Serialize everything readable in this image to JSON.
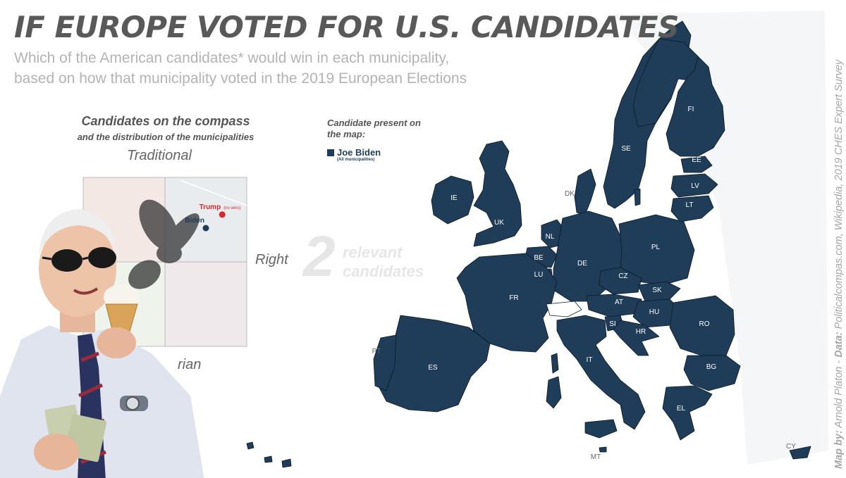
{
  "header": {
    "title": "IF EUROPE VOTED FOR U.S. CANDIDATES",
    "subtitle_line1": "Which of the American candidates* would win in each municipality,",
    "subtitle_line2": "based on how that municipality voted in the 2019 European Elections"
  },
  "credits": {
    "map_by_label": "Map by:",
    "map_by": "Arnold Platon",
    "separator": " - ",
    "data_label": "Data:",
    "data": "Politicalcompas.com, Wikipedia, 2019 CHES Expert Survey"
  },
  "compass": {
    "title": "Candidates on the compass",
    "subtitle": "and the distribution of the municipalities",
    "axis_top": "Traditional",
    "axis_right": "Right",
    "axis_bottom_fragment": "rian"
  },
  "chart_data": {
    "type": "scatter",
    "title": "Candidates on the compass",
    "subtitle": "and the distribution of the municipalities",
    "axis_labels": {
      "top": "Traditional",
      "right": "Right",
      "bottom": "rian"
    },
    "grid": true,
    "series": [
      {
        "name": "Trump",
        "note": "(no wins)",
        "color": "#d42a2a",
        "points": [
          {
            "x": 0.85,
            "y": 0.78
          }
        ]
      },
      {
        "name": "Biden",
        "color": "#1f3d59",
        "points": [
          {
            "x": 0.75,
            "y": 0.7
          }
        ]
      }
    ]
  },
  "legend": {
    "title": "Candidate present on the map:",
    "items": [
      {
        "label": "Joe Biden",
        "note": "(All municipalities)",
        "color": "#1f3d59"
      }
    ]
  },
  "callout": {
    "number": "2",
    "text_line1": "relevant",
    "text_line2": "candidates"
  },
  "map": {
    "fill_color": "#1f3d59",
    "border_color": "#0b1926",
    "label_color": "#ffffff",
    "outside_label_color": "#666666",
    "country_labels": [
      {
        "code": "FI"
      },
      {
        "code": "SE"
      },
      {
        "code": "EE"
      },
      {
        "code": "LV"
      },
      {
        "code": "LT"
      },
      {
        "code": "DK"
      },
      {
        "code": "IE"
      },
      {
        "code": "UK"
      },
      {
        "code": "NL"
      },
      {
        "code": "PL"
      },
      {
        "code": "DE"
      },
      {
        "code": "BE"
      },
      {
        "code": "LU"
      },
      {
        "code": "CZ"
      },
      {
        "code": "SK"
      },
      {
        "code": "FR"
      },
      {
        "code": "AT"
      },
      {
        "code": "HU"
      },
      {
        "code": "RO"
      },
      {
        "code": "SI"
      },
      {
        "code": "HR"
      },
      {
        "code": "IT"
      },
      {
        "code": "BG"
      },
      {
        "code": "PT"
      },
      {
        "code": "ES"
      },
      {
        "code": "EL"
      },
      {
        "code": "MT"
      },
      {
        "code": "CY"
      }
    ]
  },
  "photo": {
    "description_icon": "person-photo-icon"
  }
}
